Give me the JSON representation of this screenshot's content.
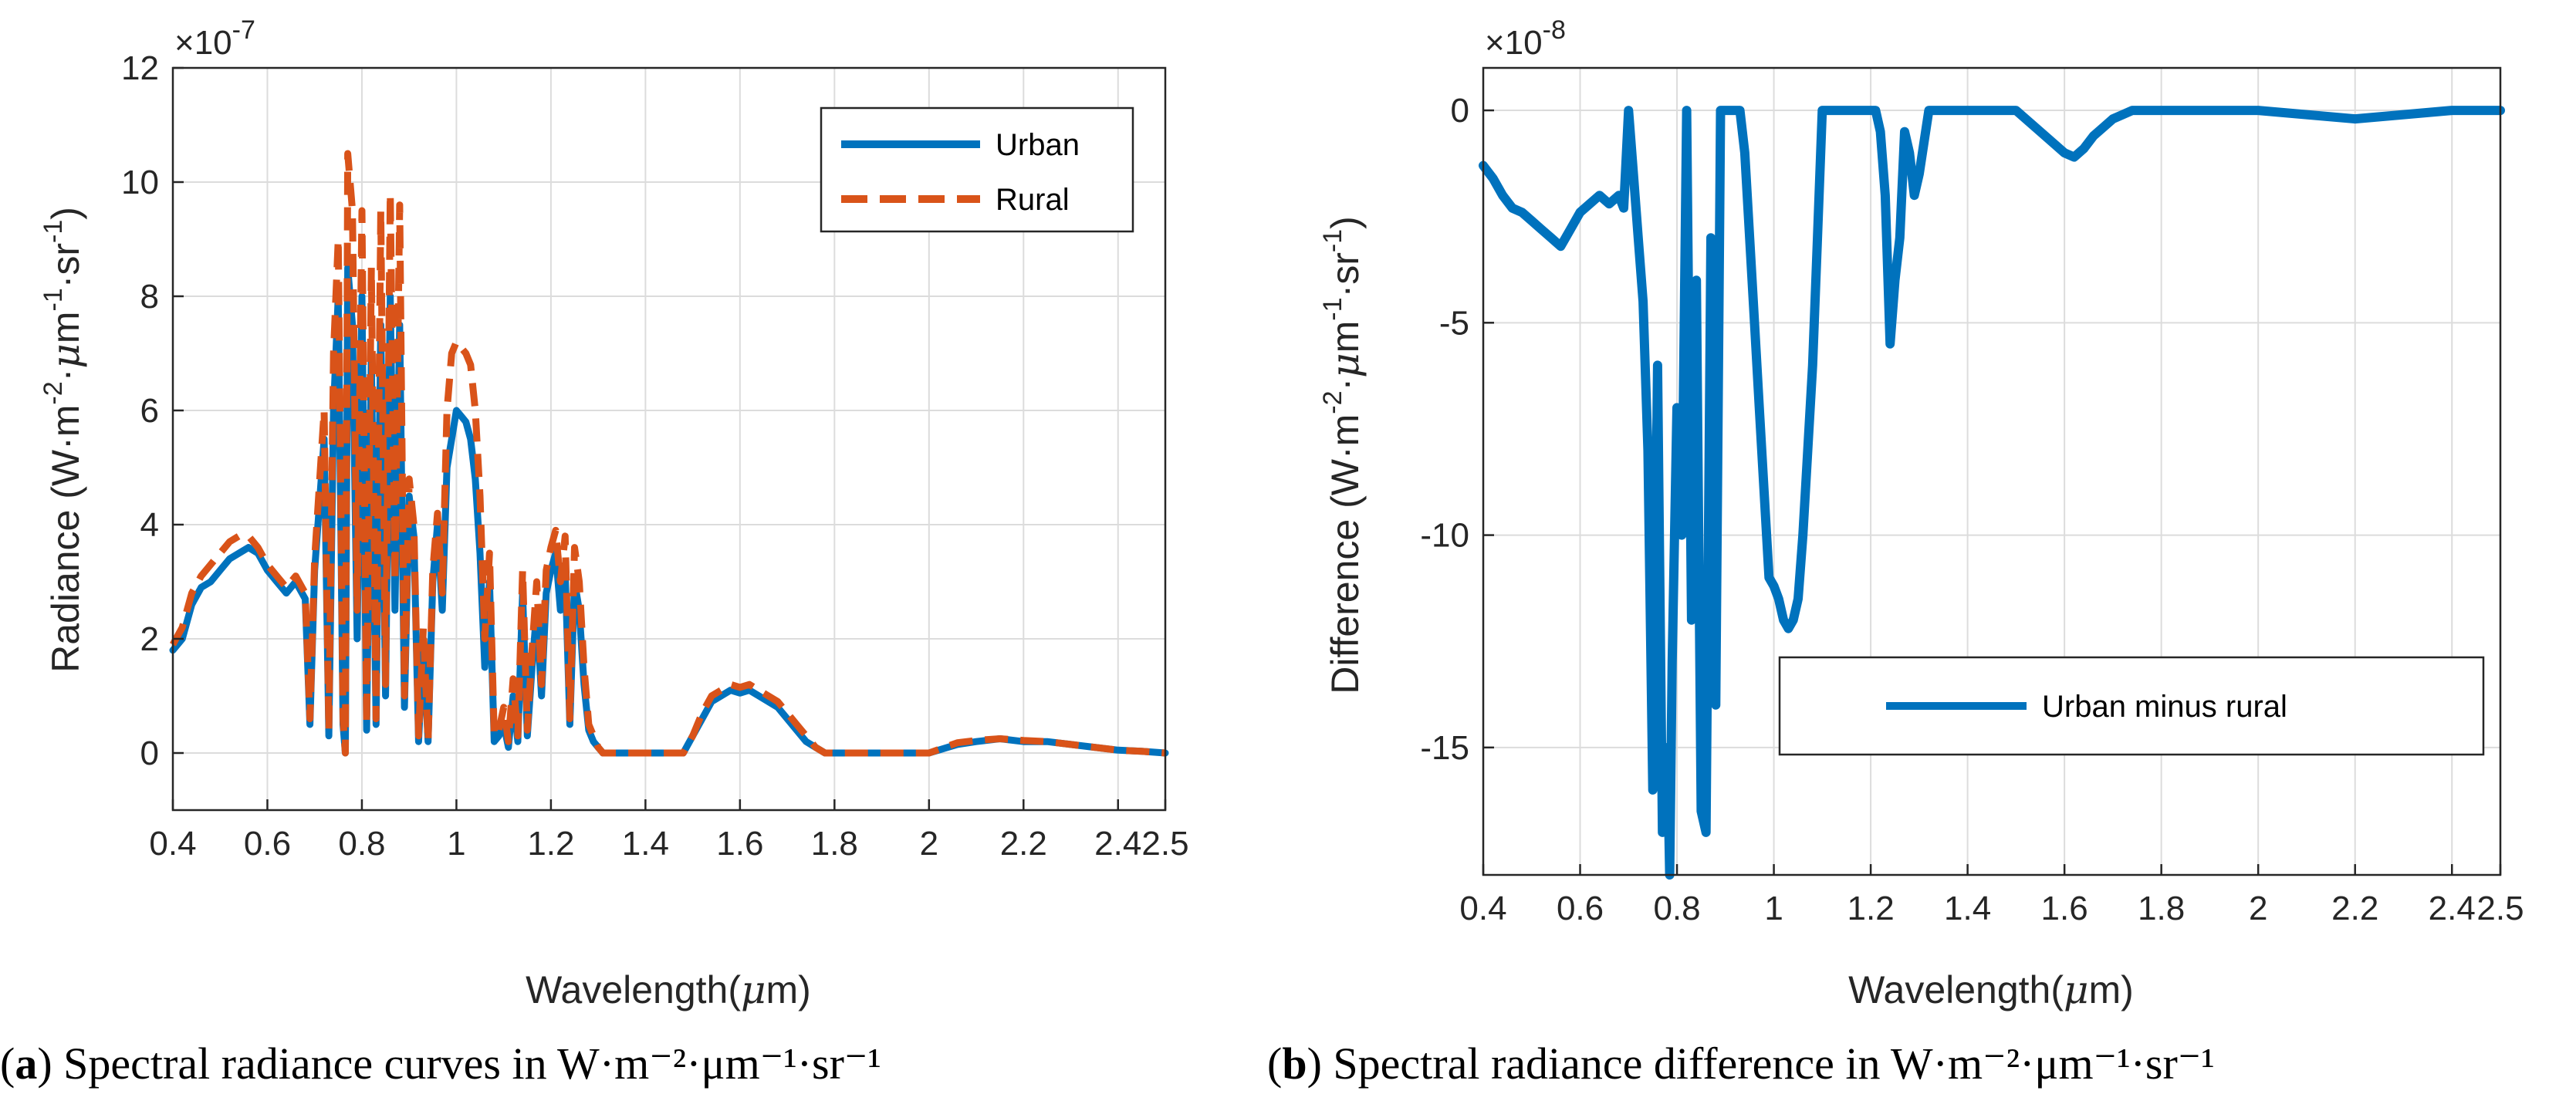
{
  "colors": {
    "urban": "#0072BD",
    "rural": "#D95319",
    "axis": "#262626",
    "grid": "#dcdcdc"
  },
  "chart_data": [
    {
      "id": "a",
      "type": "line",
      "caption_label": "a",
      "caption_text": "Spectral radiance curves in W·m⁻²·μm⁻¹·sr⁻¹",
      "xlabel_text": "Wavelength(",
      "xlabel_mu": "μ",
      "xlabel_unit": "m)",
      "ylabel_main": "Radiance (W·m",
      "ylabel_sup1": "-2",
      "ylabel_mid1": "·",
      "ylabel_mu": "μ",
      "ylabel_mid2": "m",
      "ylabel_sup2": "-1",
      "ylabel_mid3": "·sr",
      "ylabel_sup3": "-1",
      "ylabel_end": ")",
      "exponent_base": "×10",
      "exponent_power": "-7",
      "xlim": [
        0.4,
        2.5
      ],
      "ylim": [
        -1,
        12
      ],
      "xticks": [
        0.4,
        0.6,
        0.8,
        1,
        1.2,
        1.4,
        1.6,
        1.8,
        2,
        2.2,
        2.4,
        2.5
      ],
      "xtick_labels": [
        "0.4",
        "0.6",
        "0.8",
        "1",
        "1.2",
        "1.4",
        "1.6",
        "1.8",
        "2",
        "2.2",
        "2.4",
        "2.5"
      ],
      "yticks": [
        0,
        2,
        4,
        6,
        8,
        10,
        12
      ],
      "ytick_labels": [
        "0",
        "2",
        "4",
        "6",
        "8",
        "10",
        "12"
      ],
      "grid": true,
      "legend_position": "top-right",
      "series": [
        {
          "name": "Urban",
          "color": "#0072BD",
          "dashed": false,
          "x": [
            0.4,
            0.42,
            0.44,
            0.46,
            0.48,
            0.5,
            0.52,
            0.54,
            0.56,
            0.58,
            0.6,
            0.62,
            0.64,
            0.66,
            0.68,
            0.69,
            0.7,
            0.72,
            0.73,
            0.74,
            0.75,
            0.76,
            0.765,
            0.77,
            0.78,
            0.79,
            0.8,
            0.81,
            0.82,
            0.83,
            0.84,
            0.85,
            0.86,
            0.87,
            0.88,
            0.89,
            0.9,
            0.91,
            0.92,
            0.93,
            0.94,
            0.95,
            0.96,
            0.97,
            0.98,
            0.99,
            1.0,
            1.01,
            1.02,
            1.03,
            1.04,
            1.05,
            1.06,
            1.07,
            1.08,
            1.09,
            1.1,
            1.11,
            1.12,
            1.13,
            1.14,
            1.15,
            1.16,
            1.17,
            1.18,
            1.19,
            1.2,
            1.21,
            1.22,
            1.23,
            1.24,
            1.25,
            1.26,
            1.27,
            1.28,
            1.29,
            1.3,
            1.31,
            1.32,
            1.33,
            1.34,
            1.35,
            1.36,
            1.4,
            1.44,
            1.48,
            1.5,
            1.52,
            1.54,
            1.56,
            1.58,
            1.6,
            1.62,
            1.64,
            1.66,
            1.68,
            1.7,
            1.72,
            1.74,
            1.76,
            1.78,
            1.8,
            1.9,
            2.0,
            2.02,
            2.04,
            2.06,
            2.1,
            2.15,
            2.2,
            2.25,
            2.3,
            2.35,
            2.4,
            2.45,
            2.5
          ],
          "y": [
            1.8,
            2.0,
            2.6,
            2.9,
            3.0,
            3.2,
            3.4,
            3.5,
            3.6,
            3.5,
            3.2,
            3.0,
            2.8,
            3.0,
            2.7,
            0.5,
            3.2,
            5.5,
            0.3,
            6.0,
            8.0,
            0.5,
            0,
            8.5,
            7.5,
            2.0,
            8.0,
            0.4,
            7.0,
            0.5,
            7.5,
            1.0,
            8.0,
            2.5,
            7.5,
            0.8,
            4.5,
            3.8,
            0.2,
            2.0,
            0.2,
            3.0,
            4.0,
            2.5,
            5.0,
            5.5,
            6.0,
            5.9,
            5.8,
            5.5,
            4.8,
            3.5,
            1.5,
            3.0,
            0.2,
            0.3,
            0.5,
            0.1,
            1.0,
            0.2,
            2.8,
            0.3,
            1.5,
            2.5,
            1.0,
            2.8,
            3.2,
            3.5,
            2.5,
            3.2,
            0.5,
            3.0,
            2.5,
            1.2,
            0.4,
            0.2,
            0.1,
            0,
            0,
            0,
            0,
            0,
            0,
            0,
            0,
            0,
            0.3,
            0.6,
            0.9,
            1.0,
            1.1,
            1.05,
            1.1,
            1.0,
            0.9,
            0.8,
            0.6,
            0.4,
            0.2,
            0.1,
            0,
            0,
            0,
            0,
            0.05,
            0.1,
            0.15,
            0.2,
            0.25,
            0.2,
            0.2,
            0.15,
            0.1,
            0.05,
            0.03,
            0
          ]
        },
        {
          "name": "Rural",
          "color": "#D95319",
          "dashed": true,
          "x": [
            0.4,
            0.42,
            0.44,
            0.46,
            0.48,
            0.5,
            0.52,
            0.54,
            0.56,
            0.58,
            0.6,
            0.62,
            0.64,
            0.66,
            0.68,
            0.69,
            0.7,
            0.72,
            0.73,
            0.74,
            0.75,
            0.76,
            0.765,
            0.77,
            0.78,
            0.79,
            0.8,
            0.81,
            0.82,
            0.83,
            0.84,
            0.85,
            0.86,
            0.87,
            0.88,
            0.89,
            0.9,
            0.91,
            0.92,
            0.93,
            0.94,
            0.95,
            0.96,
            0.97,
            0.98,
            0.99,
            1.0,
            1.01,
            1.02,
            1.03,
            1.04,
            1.05,
            1.06,
            1.07,
            1.08,
            1.09,
            1.1,
            1.11,
            1.12,
            1.13,
            1.14,
            1.15,
            1.16,
            1.17,
            1.18,
            1.19,
            1.2,
            1.21,
            1.22,
            1.23,
            1.24,
            1.25,
            1.26,
            1.27,
            1.28,
            1.29,
            1.3,
            1.31,
            1.32,
            1.33,
            1.34,
            1.35,
            1.36,
            1.4,
            1.44,
            1.48,
            1.5,
            1.52,
            1.54,
            1.56,
            1.58,
            1.6,
            1.62,
            1.64,
            1.66,
            1.68,
            1.7,
            1.72,
            1.74,
            1.76,
            1.78,
            1.8,
            1.9,
            2.0,
            2.02,
            2.04,
            2.06,
            2.1,
            2.15,
            2.2,
            2.25,
            2.3,
            2.35,
            2.4,
            2.45,
            2.5
          ],
          "y": [
            1.9,
            2.2,
            2.8,
            3.1,
            3.3,
            3.5,
            3.7,
            3.8,
            3.8,
            3.6,
            3.3,
            3.1,
            2.9,
            3.1,
            2.8,
            0.6,
            3.4,
            6.0,
            0.4,
            7.0,
            9.0,
            0.6,
            0,
            10.5,
            9.5,
            2.5,
            9.5,
            0.5,
            8.5,
            0.6,
            9.5,
            1.2,
            9.8,
            3.0,
            9.6,
            1.0,
            4.8,
            4.0,
            0.3,
            2.2,
            0.2,
            3.2,
            4.2,
            2.8,
            6.0,
            7.0,
            7.2,
            7.1,
            7.0,
            6.8,
            6.0,
            4.5,
            2.0,
            3.5,
            0.3,
            0.4,
            0.8,
            0.2,
            1.3,
            0.3,
            3.2,
            0.4,
            1.8,
            3.0,
            1.2,
            3.2,
            3.6,
            3.9,
            3.0,
            3.8,
            0.6,
            3.6,
            3.0,
            1.5,
            0.5,
            0.3,
            0.1,
            0,
            0,
            0,
            0,
            0,
            0,
            0,
            0,
            0,
            0.3,
            0.7,
            1.0,
            1.1,
            1.2,
            1.15,
            1.2,
            1.1,
            1.0,
            0.9,
            0.7,
            0.5,
            0.3,
            0.1,
            0,
            0,
            0,
            0,
            0.06,
            0.12,
            0.18,
            0.22,
            0.25,
            0.22,
            0.2,
            0.15,
            0.1,
            0.05,
            0.03,
            0
          ]
        }
      ]
    },
    {
      "id": "b",
      "type": "line",
      "caption_label": "b",
      "caption_text": "Spectral radiance difference in W·m⁻²·μm⁻¹·sr⁻¹",
      "xlabel_text": "Wavelength(",
      "xlabel_mu": "μ",
      "xlabel_unit": "m)",
      "ylabel_main": "Difference (W·m",
      "ylabel_sup1": "-2",
      "ylabel_mid1": "·",
      "ylabel_mu": "μ",
      "ylabel_mid2": "m",
      "ylabel_sup2": "-1",
      "ylabel_mid3": "·sr",
      "ylabel_sup3": "-1",
      "ylabel_end": ")",
      "exponent_base": "×10",
      "exponent_power": "-8",
      "xlim": [
        0.4,
        2.5
      ],
      "ylim": [
        -18,
        1
      ],
      "xticks": [
        0.4,
        0.6,
        0.8,
        1,
        1.2,
        1.4,
        1.6,
        1.8,
        2,
        2.2,
        2.4,
        2.5
      ],
      "xtick_labels": [
        "0.4",
        "0.6",
        "0.8",
        "1",
        "1.2",
        "1.4",
        "1.6",
        "1.8",
        "2",
        "2.2",
        "2.4",
        "2.5"
      ],
      "yticks": [
        -15,
        -10,
        -5,
        0
      ],
      "ytick_labels": [
        "-15",
        "-10",
        "-5",
        "0"
      ],
      "grid": true,
      "legend_position": "center-right",
      "series": [
        {
          "name": "Urban minus rural",
          "color": "#0072BD",
          "dashed": false,
          "x": [
            0.4,
            0.42,
            0.44,
            0.46,
            0.48,
            0.5,
            0.52,
            0.54,
            0.56,
            0.58,
            0.6,
            0.62,
            0.64,
            0.66,
            0.68,
            0.69,
            0.7,
            0.71,
            0.72,
            0.73,
            0.74,
            0.75,
            0.76,
            0.77,
            0.78,
            0.785,
            0.79,
            0.8,
            0.81,
            0.82,
            0.83,
            0.84,
            0.85,
            0.86,
            0.87,
            0.88,
            0.89,
            0.9,
            0.91,
            0.92,
            0.93,
            0.94,
            0.95,
            0.96,
            0.97,
            0.98,
            0.99,
            1.0,
            1.01,
            1.02,
            1.03,
            1.04,
            1.05,
            1.06,
            1.07,
            1.08,
            1.09,
            1.1,
            1.12,
            1.14,
            1.16,
            1.18,
            1.2,
            1.21,
            1.22,
            1.23,
            1.24,
            1.25,
            1.26,
            1.27,
            1.28,
            1.29,
            1.3,
            1.32,
            1.4,
            1.5,
            1.55,
            1.58,
            1.6,
            1.62,
            1.64,
            1.66,
            1.68,
            1.7,
            1.72,
            1.74,
            1.76,
            1.78,
            1.8,
            1.9,
            2.0,
            2.1,
            2.2,
            2.3,
            2.4,
            2.5
          ],
          "y": [
            -1.3,
            -1.6,
            -2.0,
            -2.3,
            -2.4,
            -2.6,
            -2.8,
            -3.0,
            -3.2,
            -2.8,
            -2.4,
            -2.2,
            -2.0,
            -2.2,
            -2.0,
            -2.3,
            0,
            -1.5,
            -3.0,
            -4.5,
            -8.0,
            -16.0,
            -6.0,
            -17.0,
            -15.0,
            -18.0,
            -13.0,
            -7.0,
            -10.0,
            0,
            -12.0,
            -4.0,
            -16.5,
            -17.0,
            -3.0,
            -14.0,
            0,
            0,
            0,
            0,
            0,
            -1.0,
            -3.0,
            -5.0,
            -7.0,
            -9.0,
            -11.0,
            -11.2,
            -11.5,
            -12.0,
            -12.2,
            -12.0,
            -11.5,
            -10.0,
            -8.0,
            -6.0,
            -3.0,
            0,
            0,
            0,
            0,
            0,
            0,
            0,
            -0.5,
            -2.0,
            -5.5,
            -4.0,
            -3.0,
            -0.5,
            -1.0,
            -2.0,
            -1.5,
            0,
            0,
            0,
            -0.5,
            -0.8,
            -1.0,
            -1.1,
            -0.9,
            -0.6,
            -0.4,
            -0.2,
            -0.1,
            0,
            0,
            0,
            0,
            0,
            0,
            -0.1,
            -0.2,
            -0.1,
            0,
            0
          ]
        }
      ]
    }
  ]
}
